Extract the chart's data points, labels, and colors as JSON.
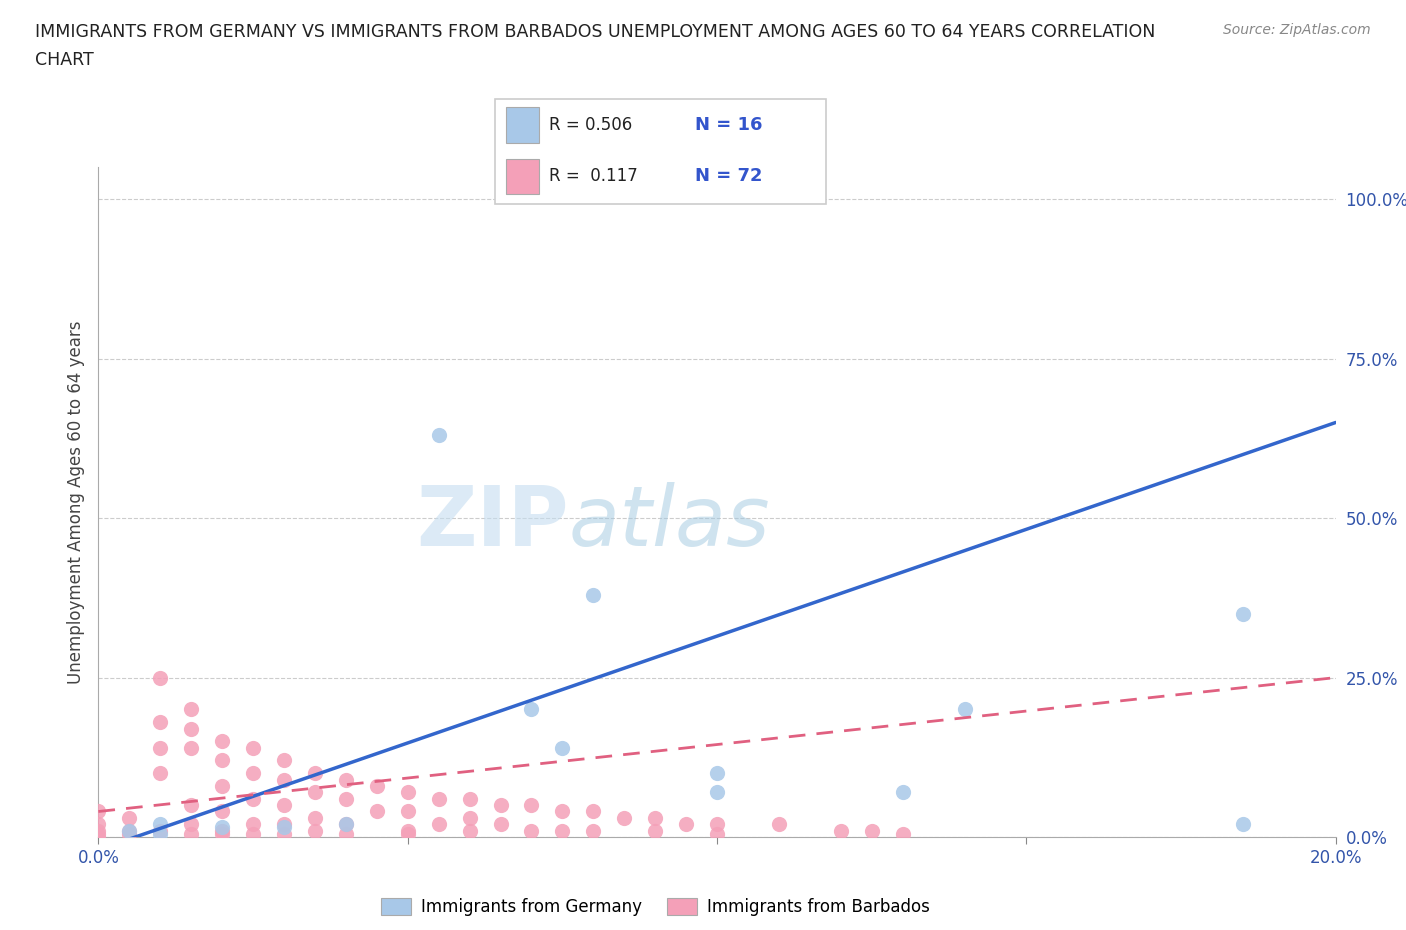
{
  "title_line1": "IMMIGRANTS FROM GERMANY VS IMMIGRANTS FROM BARBADOS UNEMPLOYMENT AMONG AGES 60 TO 64 YEARS CORRELATION",
  "title_line2": "CHART",
  "source": "Source: ZipAtlas.com",
  "ylabel": "Unemployment Among Ages 60 to 64 years",
  "xlim": [
    0.0,
    0.2
  ],
  "ylim": [
    0.0,
    1.05
  ],
  "germany_color": "#a8c8e8",
  "barbados_color": "#f4a0b8",
  "germany_line_color": "#3366cc",
  "barbados_line_color": "#e06080",
  "germany_R": 0.506,
  "germany_N": 16,
  "barbados_R": 0.117,
  "barbados_N": 72,
  "background_color": "#ffffff",
  "germany_scatter_x": [
    0.005,
    0.01,
    0.01,
    0.02,
    0.03,
    0.04,
    0.055,
    0.07,
    0.075,
    0.08,
    0.1,
    0.1,
    0.13,
    0.14,
    0.185,
    0.185
  ],
  "germany_scatter_y": [
    0.01,
    0.005,
    0.02,
    0.015,
    0.015,
    0.02,
    0.63,
    0.2,
    0.14,
    0.38,
    0.1,
    0.07,
    0.07,
    0.2,
    0.35,
    0.02
  ],
  "barbados_scatter_x": [
    0.0,
    0.0,
    0.0,
    0.0,
    0.0,
    0.005,
    0.005,
    0.005,
    0.01,
    0.01,
    0.01,
    0.01,
    0.01,
    0.015,
    0.015,
    0.015,
    0.015,
    0.015,
    0.015,
    0.02,
    0.02,
    0.02,
    0.02,
    0.02,
    0.02,
    0.025,
    0.025,
    0.025,
    0.025,
    0.025,
    0.03,
    0.03,
    0.03,
    0.03,
    0.03,
    0.035,
    0.035,
    0.035,
    0.035,
    0.04,
    0.04,
    0.04,
    0.04,
    0.045,
    0.045,
    0.05,
    0.05,
    0.05,
    0.05,
    0.055,
    0.055,
    0.06,
    0.06,
    0.06,
    0.065,
    0.065,
    0.07,
    0.07,
    0.075,
    0.075,
    0.08,
    0.08,
    0.085,
    0.09,
    0.09,
    0.095,
    0.1,
    0.1,
    0.11,
    0.12,
    0.125,
    0.13
  ],
  "barbados_scatter_y": [
    0.04,
    0.02,
    0.01,
    0.005,
    0.0,
    0.03,
    0.01,
    0.005,
    0.25,
    0.18,
    0.14,
    0.1,
    0.01,
    0.2,
    0.17,
    0.14,
    0.05,
    0.02,
    0.005,
    0.15,
    0.12,
    0.08,
    0.04,
    0.01,
    0.005,
    0.14,
    0.1,
    0.06,
    0.02,
    0.005,
    0.12,
    0.09,
    0.05,
    0.02,
    0.005,
    0.1,
    0.07,
    0.03,
    0.01,
    0.09,
    0.06,
    0.02,
    0.005,
    0.08,
    0.04,
    0.07,
    0.04,
    0.01,
    0.005,
    0.06,
    0.02,
    0.06,
    0.03,
    0.01,
    0.05,
    0.02,
    0.05,
    0.01,
    0.04,
    0.01,
    0.04,
    0.01,
    0.03,
    0.03,
    0.01,
    0.02,
    0.02,
    0.005,
    0.02,
    0.01,
    0.01,
    0.005
  ],
  "germany_line_x": [
    0.0,
    0.2
  ],
  "germany_line_y": [
    -0.02,
    0.65
  ],
  "barbados_line_x": [
    0.0,
    0.2
  ],
  "barbados_line_y": [
    0.04,
    0.25
  ],
  "ytick_positions": [
    0.0,
    0.25,
    0.5,
    0.75,
    1.0
  ],
  "ytick_labels": [
    "0.0%",
    "25.0%",
    "50.0%",
    "75.0%",
    "100.0%"
  ],
  "xtick_positions": [
    0.0,
    0.05,
    0.1,
    0.15,
    0.2
  ],
  "xtick_labels": [
    "0.0%",
    "",
    "",
    "",
    "20.0%"
  ],
  "watermark_part1": "ZIP",
  "watermark_part2": "atlas"
}
